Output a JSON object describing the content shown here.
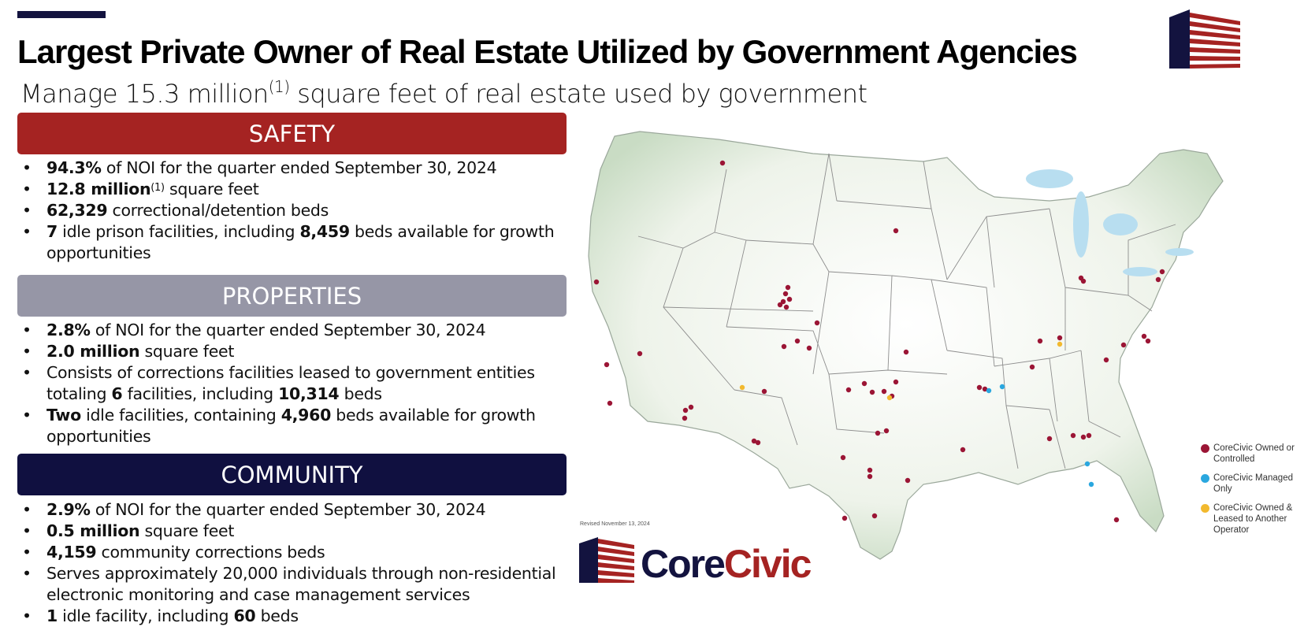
{
  "header": {
    "title": "Largest Private Owner of Real Estate Utilized by Government Agencies",
    "subtitle_pre": "Manage 15.3 million",
    "subtitle_sup": "(1)",
    "subtitle_post": " square feet of real estate used by government"
  },
  "sections": {
    "safety": {
      "label": "SAFETY",
      "color": "#a52322",
      "bullets": [
        {
          "b": "94.3%",
          "t": " of NOI for the quarter ended September 30, 2024"
        },
        {
          "b": "12.8 million",
          "sup": "(1)",
          "t": " square feet"
        },
        {
          "b": "62,329",
          "t": " correctional/detention beds"
        },
        {
          "b": "7",
          "t": " idle prison facilities, including ",
          "b2": "8,459",
          "t2": " beds available for growth opportunities"
        }
      ]
    },
    "properties": {
      "label": "PROPERTIES",
      "color": "#9696a6",
      "bullets": [
        {
          "b": "2.8%",
          "t": " of NOI for the quarter ended September 30, 2024"
        },
        {
          "b": "2.0 million",
          "t": " square feet"
        },
        {
          "t0": "Consists of corrections facilities leased to government entities totaling ",
          "b": "6",
          "t": " facilities, including ",
          "b2": "10,314",
          "t2": " beds"
        },
        {
          "b": "Two",
          "t": " idle facilities, containing ",
          "b2": "4,960",
          "t2": " beds available for growth opportunities"
        }
      ]
    },
    "community": {
      "label": "COMMUNITY",
      "color": "#101040",
      "bullets": [
        {
          "b": "2.9%",
          "t": " of NOI for the quarter ended September 30, 2024"
        },
        {
          "b": "0.5 million",
          "t": " square feet"
        },
        {
          "b": "4,159",
          "t": " community corrections beds"
        },
        {
          "t0": "Serves approximately 20,000 individuals through non-residential electronic monitoring and case management services"
        },
        {
          "b": "1",
          "t": " idle facility, including ",
          "b2": "60",
          "t2": " beds"
        }
      ]
    }
  },
  "map": {
    "revised": "Revised November 13, 2024",
    "legend": [
      {
        "label": "CoreCivic Owned or Controlled",
        "color": "#9b1535"
      },
      {
        "label": "CoreCivic Managed Only",
        "color": "#2aa7df"
      },
      {
        "label": "CoreCivic Owned & Leased to Another Operator",
        "color": "#f2b92e"
      }
    ]
  },
  "brand": {
    "name_core": "Core",
    "name_civic": "Civic",
    "navy": "#13133f",
    "red": "#a52322"
  }
}
